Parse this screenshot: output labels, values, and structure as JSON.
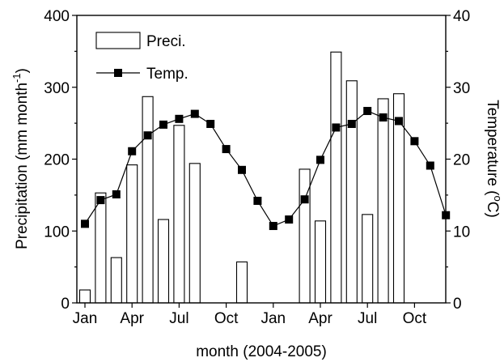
{
  "chart_data": {
    "type": "bar+line",
    "title": "",
    "xlabel": "month (2004-2005)",
    "y_left_label_main": "Precipitation (mm month",
    "y_left_label_sup": "-1",
    "y_left_label_end": ")",
    "y_right_label_main": "Temperature (",
    "y_right_label_sup": "o",
    "y_right_label_end": "C)",
    "ylim_left": [
      0,
      400
    ],
    "ylim_right": [
      0,
      40
    ],
    "y_left_ticks": [
      "0",
      "100",
      "200",
      "300",
      "400"
    ],
    "y_right_ticks": [
      "0",
      "10",
      "20",
      "30",
      "40"
    ],
    "x_tick_labels": [
      "Jan",
      "Apr",
      "Jul",
      "Oct",
      "Jan",
      "Apr",
      "Jul",
      "Oct"
    ],
    "legend_position": "top-left",
    "legend": {
      "bars": "Preci.",
      "line": "Temp."
    },
    "months": [
      "Jan 2004",
      "Feb 2004",
      "Mar 2004",
      "Apr 2004",
      "May 2004",
      "Jun 2004",
      "Jul 2004",
      "Aug 2004",
      "Sep 2004",
      "Oct 2004",
      "Nov 2004",
      "Dec 2004",
      "Jan 2005",
      "Feb 2005",
      "Mar 2005",
      "Apr 2005",
      "May 2005",
      "Jun 2005",
      "Jul 2005",
      "Aug 2005",
      "Sep 2005",
      "Oct 2005",
      "Nov 2005",
      "Dec 2005"
    ],
    "series": [
      {
        "name": "Preci.",
        "type": "bar",
        "axis": "left",
        "values": [
          18,
          153,
          63,
          192,
          287,
          116,
          247,
          194,
          0,
          0,
          57,
          0,
          0,
          0,
          186,
          114,
          349,
          309,
          123,
          284,
          291,
          0,
          0,
          0
        ]
      },
      {
        "name": "Temp.",
        "type": "line",
        "axis": "right",
        "values": [
          11.0,
          14.3,
          15.1,
          21.1,
          23.3,
          24.8,
          25.6,
          26.3,
          24.9,
          21.4,
          18.5,
          14.2,
          10.7,
          11.6,
          14.4,
          19.9,
          24.4,
          24.9,
          26.7,
          25.8,
          25.3,
          22.5,
          19.1,
          12.2
        ]
      }
    ]
  }
}
